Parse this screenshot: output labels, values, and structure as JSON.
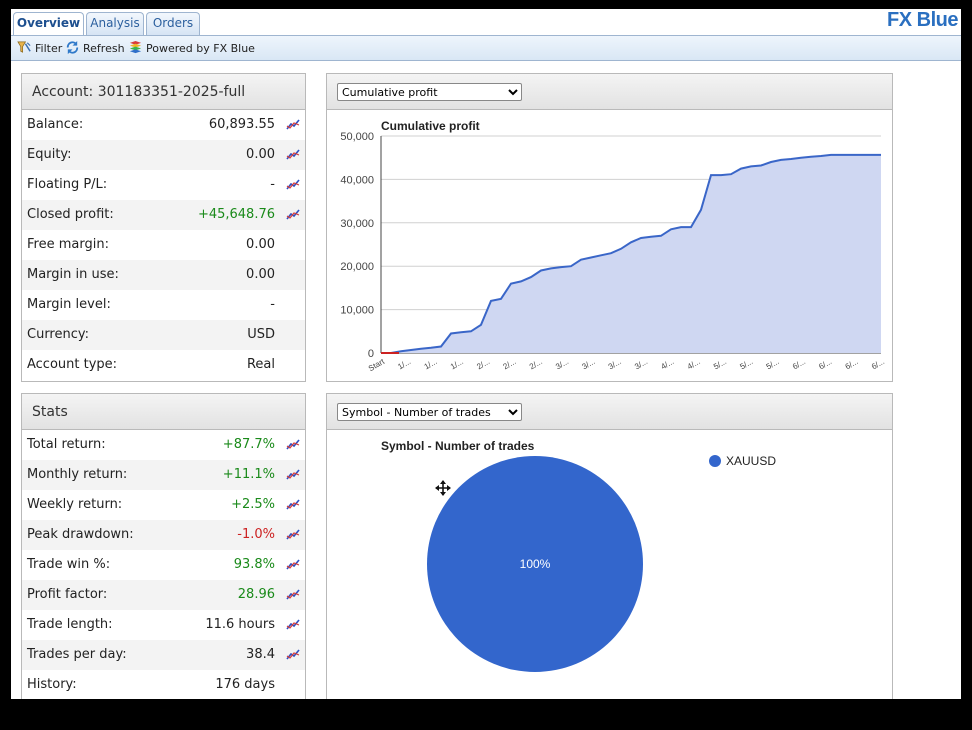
{
  "brand": "FX Blue",
  "tabs": [
    {
      "label": "Overview",
      "active": true
    },
    {
      "label": "Analysis",
      "active": false
    },
    {
      "label": "Orders",
      "active": false
    }
  ],
  "toolbar": {
    "filter": "Filter",
    "refresh": "Refresh",
    "powered": "Powered by FX Blue"
  },
  "account": {
    "title": "Account: 301183351-2025-full",
    "rows": [
      {
        "label": "Balance:",
        "value": "60,893.55",
        "tone": "",
        "spark": true
      },
      {
        "label": "Equity:",
        "value": "0.00",
        "tone": "",
        "spark": true
      },
      {
        "label": "Floating P/L:",
        "value": "-",
        "tone": "",
        "spark": true
      },
      {
        "label": "Closed profit:",
        "value": "+45,648.76",
        "tone": "pos",
        "spark": true
      },
      {
        "label": "Free margin:",
        "value": "0.00",
        "tone": "",
        "spark": false
      },
      {
        "label": "Margin in use:",
        "value": "0.00",
        "tone": "",
        "spark": false
      },
      {
        "label": "Margin level:",
        "value": "-",
        "tone": "",
        "spark": false
      },
      {
        "label": "Currency:",
        "value": "USD",
        "tone": "",
        "spark": false
      },
      {
        "label": "Account type:",
        "value": "Real",
        "tone": "",
        "spark": false
      }
    ]
  },
  "stats": {
    "title": "Stats",
    "rows": [
      {
        "label": "Total return:",
        "value": "+87.7%",
        "tone": "pos",
        "spark": true
      },
      {
        "label": "Monthly return:",
        "value": "+11.1%",
        "tone": "pos",
        "spark": true
      },
      {
        "label": "Weekly return:",
        "value": "+2.5%",
        "tone": "pos",
        "spark": true
      },
      {
        "label": "Peak drawdown:",
        "value": "-1.0%",
        "tone": "neg",
        "spark": true
      },
      {
        "label": "Trade win %:",
        "value": "93.8%",
        "tone": "pos",
        "spark": true
      },
      {
        "label": "Profit factor:",
        "value": "28.96",
        "tone": "pos",
        "spark": true
      },
      {
        "label": "Trade length:",
        "value": "11.6 hours",
        "tone": "",
        "spark": true
      },
      {
        "label": "Trades per day:",
        "value": "38.4",
        "tone": "",
        "spark": true
      },
      {
        "label": "History:",
        "value": "176 days",
        "tone": "",
        "spark": false
      }
    ]
  },
  "profit_chart": {
    "selected": "Cumulative profit"
  },
  "pie_chart": {
    "selected": "Symbol - Number of trades"
  },
  "colors": {
    "series_line": "#3a66c8",
    "series_fill": "#cfd7f2",
    "pie": "#3366cc",
    "positive": "#1a8a1a",
    "negative": "#cc2222"
  },
  "chart_data": [
    {
      "type": "area",
      "title": "Cumulative profit",
      "xlabel": "",
      "ylabel": "",
      "ylim": [
        0,
        50000
      ],
      "yticks": [
        "0",
        "10,000",
        "20,000",
        "30,000",
        "40,000",
        "50,000"
      ],
      "xticks": [
        "Start",
        "1/...",
        "1/...",
        "1/...",
        "2/...",
        "2/...",
        "2/...",
        "3/...",
        "3/...",
        "3/...",
        "3/...",
        "4/...",
        "4/...",
        "5/...",
        "5/...",
        "5/...",
        "6/...",
        "6/...",
        "6/...",
        "6/..."
      ],
      "grid": true,
      "series": [
        {
          "name": "Cumulative profit",
          "x": [
            0,
            2,
            4,
            6,
            8,
            10,
            12,
            14,
            16,
            18,
            20,
            22,
            24,
            26,
            28,
            30,
            32,
            34,
            36,
            38,
            40,
            42,
            44,
            46,
            48,
            50,
            52,
            54,
            56,
            58,
            60,
            62,
            64,
            66,
            68,
            70,
            72,
            74,
            76,
            78,
            80,
            82,
            84,
            86,
            88,
            90,
            92,
            94,
            96,
            98,
            100
          ],
          "values": [
            0,
            0,
            400,
            700,
            1000,
            1200,
            1500,
            4500,
            4800,
            5000,
            6500,
            12000,
            12500,
            16000,
            16500,
            17500,
            19000,
            19500,
            19800,
            20000,
            21500,
            22000,
            22500,
            23000,
            24000,
            25500,
            26500,
            26800,
            27000,
            28500,
            29000,
            29000,
            33000,
            41000,
            41000,
            41200,
            42500,
            43000,
            43200,
            44000,
            44500,
            44700,
            45000,
            45200,
            45400,
            45648,
            45648,
            45648,
            45648,
            45648,
            45648
          ]
        }
      ]
    },
    {
      "type": "pie",
      "title": "Symbol - Number of trades",
      "categories": [
        "XAUUSD"
      ],
      "values": [
        100
      ],
      "labels": [
        "100%"
      ],
      "legend": "top-right"
    }
  ]
}
